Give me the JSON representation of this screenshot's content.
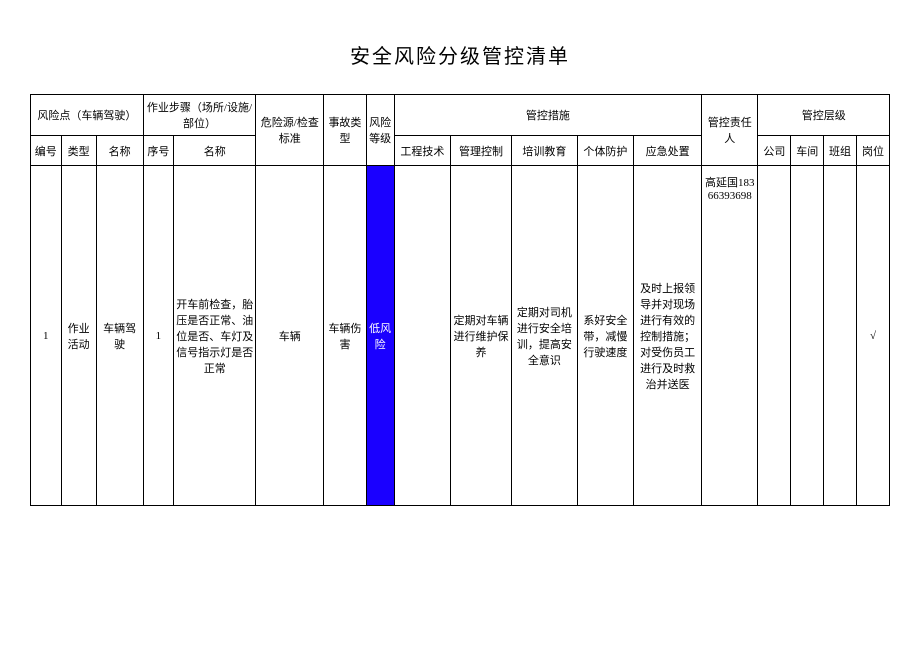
{
  "title": "安全风险分级管控清单",
  "headers": {
    "riskPoint": "风险点（车辆驾驶）",
    "workStep": "作业步骤（场所/设施/部位）",
    "hazard": "危险源/检查标准",
    "accidentType": "事故类型",
    "riskLevel": "风险等级",
    "controlMeasures": "管控措施",
    "responsible": "管控责任人",
    "controlLevel": "管控层级",
    "sub": {
      "num": "编号",
      "type": "类型",
      "name": "名称",
      "seq": "序号",
      "stepName": "名称",
      "engineering": "工程技术",
      "management": "管理控制",
      "training": "培训教育",
      "individual": "个体防护",
      "emergency": "应急处置",
      "company": "公司",
      "workshop": "车间",
      "team": "班组",
      "post": "岗位"
    }
  },
  "row": {
    "num": "1",
    "type": "作业活动",
    "name": "车辆驾驶",
    "seq": "1",
    "stepName": "开车前检查，胎压是否正常、油位是否、车灯及信号指示灯是否正常",
    "hazard": "车辆",
    "accidentType": "车辆伤害",
    "riskLevel": "低风险",
    "engineering": "",
    "management": "定期对车辆进行维护保养",
    "training": "定期对司机进行安全培训，提高安全意识",
    "individual": "系好安全带，减慢行驶速度",
    "emergency": "及时上报领导并对现场进行有效的控制措施；对受伤员工进行及时救治并送医",
    "responsible": "高延国18366393698",
    "company": "",
    "workshop": "",
    "team": "",
    "post": "√"
  },
  "colors": {
    "riskBg": "#1a00ff",
    "riskText": "#ffffff",
    "border": "#000000",
    "pageBg": "#ffffff"
  }
}
